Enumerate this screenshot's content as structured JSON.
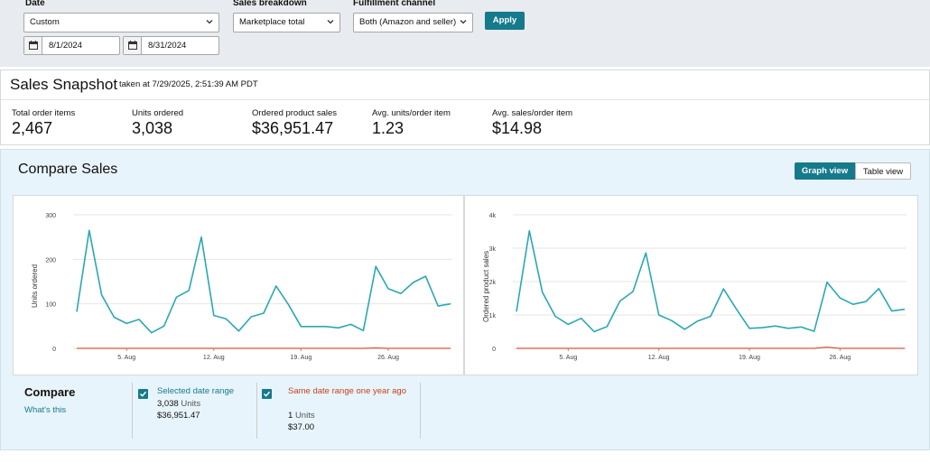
{
  "filters": {
    "date_label": "Date",
    "date_range_select": "Custom",
    "start_date": "8/1/2024",
    "end_date": "8/31/2024",
    "sales_breakdown_label": "Sales breakdown",
    "sales_breakdown_select": "Marketplace total",
    "fulfillment_label": "Fulfillment channel",
    "fulfillment_select": "Both (Amazon and seller)",
    "apply_label": "Apply"
  },
  "snapshot": {
    "title": "Sales Snapshot",
    "taken_at": "taken at 7/29/2025, 2:51:39 AM PDT",
    "metrics": [
      {
        "label": "Total order items",
        "value": "2,467"
      },
      {
        "label": "Units ordered",
        "value": "3,038"
      },
      {
        "label": "Ordered product sales",
        "value": "$36,951.47"
      },
      {
        "label": "Avg. units/order item",
        "value": "1.23"
      },
      {
        "label": "Avg. sales/order item",
        "value": "$14.98"
      }
    ]
  },
  "compare_sales": {
    "title": "Compare Sales",
    "graph_view_label": "Graph view",
    "table_view_label": "Table view"
  },
  "colors": {
    "accent": "#157a8c",
    "series_current": "#2aa8b3",
    "series_prior": "#d9533c"
  },
  "chart_data": [
    {
      "type": "line",
      "ylabel": "Units ordered",
      "ylim": [
        0,
        300
      ],
      "yticks": [
        "0",
        "100",
        "200",
        "300"
      ],
      "xticks": [
        "5. Aug",
        "12. Aug",
        "19. Aug",
        "26. Aug"
      ],
      "x": [
        1,
        2,
        3,
        4,
        5,
        6,
        7,
        8,
        9,
        10,
        11,
        12,
        13,
        14,
        15,
        16,
        17,
        18,
        19,
        20,
        21,
        22,
        23,
        24,
        25,
        26,
        27,
        28,
        29,
        30,
        31
      ],
      "series": [
        {
          "name": "Selected date range",
          "values": [
            82,
            265,
            120,
            70,
            56,
            65,
            35,
            50,
            115,
            130,
            250,
            74,
            66,
            39,
            71,
            79,
            140,
            98,
            49,
            49,
            49,
            46,
            54,
            40,
            184,
            134,
            123,
            148,
            162,
            95,
            100
          ]
        },
        {
          "name": "Same date range one year ago",
          "values": [
            0,
            0,
            0,
            0,
            0,
            0,
            0,
            0,
            0,
            0,
            0,
            0,
            0,
            0,
            0,
            0,
            0,
            0,
            0,
            0,
            0,
            0,
            0,
            0,
            1,
            0,
            0,
            0,
            0,
            0,
            0
          ]
        }
      ],
      "grid": true
    },
    {
      "type": "line",
      "ylabel": "Ordered product sales",
      "ylim": [
        0,
        4000
      ],
      "yticks": [
        "0",
        "1k",
        "2k",
        "3k",
        "4k"
      ],
      "xticks": [
        "5. Aug",
        "12. Aug",
        "19. Aug",
        "26. Aug"
      ],
      "x": [
        1,
        2,
        3,
        4,
        5,
        6,
        7,
        8,
        9,
        10,
        11,
        12,
        13,
        14,
        15,
        16,
        17,
        18,
        19,
        20,
        21,
        22,
        23,
        24,
        25,
        26,
        27,
        28,
        29,
        30,
        31
      ],
      "series": [
        {
          "name": "Selected date range",
          "values": [
            1100,
            3520,
            1680,
            960,
            720,
            900,
            500,
            650,
            1420,
            1700,
            2860,
            1000,
            830,
            570,
            820,
            960,
            1780,
            1170,
            600,
            620,
            670,
            600,
            640,
            510,
            1980,
            1510,
            1320,
            1400,
            1790,
            1120,
            1170
          ]
        },
        {
          "name": "Same date range one year ago",
          "values": [
            0,
            0,
            0,
            0,
            0,
            0,
            0,
            0,
            0,
            0,
            0,
            0,
            0,
            0,
            0,
            0,
            0,
            0,
            0,
            0,
            0,
            0,
            0,
            0,
            37,
            0,
            0,
            0,
            0,
            0,
            0
          ]
        }
      ],
      "grid": true
    }
  ],
  "legend": {
    "compare_title": "Compare",
    "whats_this": "What's this",
    "current": {
      "name": "Selected date range",
      "units": "3,038",
      "units_suffix": "Units",
      "sales": "$36,951.47"
    },
    "prior": {
      "name": "Same date range one year ago",
      "units": "1",
      "units_suffix": "Units",
      "sales": "$37.00"
    }
  }
}
